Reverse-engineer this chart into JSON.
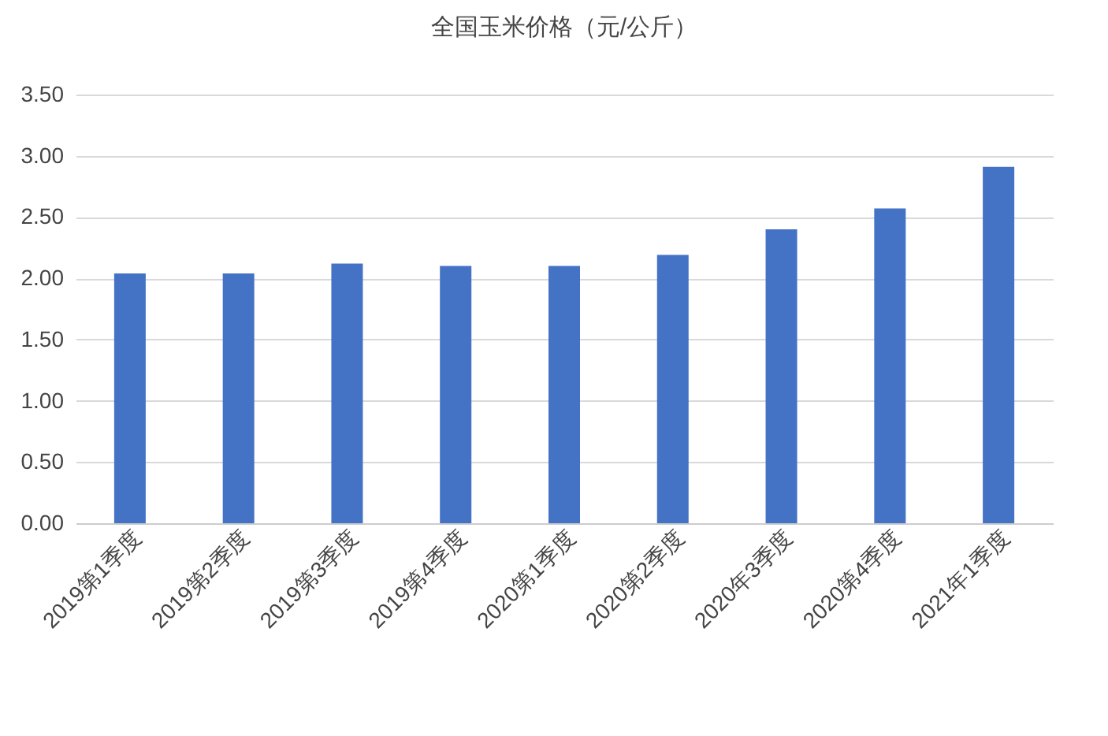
{
  "chart_data": {
    "type": "bar",
    "title": "全国玉米价格（元/公斤）",
    "categories": [
      "2019第1季度",
      "2019第2季度",
      "2019第3季度",
      "2019第4季度",
      "2020第1季度",
      "2020第2季度",
      "2020年3季度",
      "2020第4季度",
      "2021年1季度"
    ],
    "values": [
      2.04,
      2.04,
      2.12,
      2.1,
      2.1,
      2.19,
      2.4,
      2.57,
      2.91
    ],
    "color": "#4472c4",
    "ylim": [
      0,
      3.5
    ],
    "yticks": [
      {
        "value": 0,
        "label": "0.00"
      },
      {
        "value": 0.5,
        "label": "0.50"
      },
      {
        "value": 1,
        "label": "1.00"
      },
      {
        "value": 1.5,
        "label": "1.50"
      },
      {
        "value": 2,
        "label": "2.00"
      },
      {
        "value": 2.5,
        "label": "2.50"
      },
      {
        "value": 3,
        "label": "3.00"
      },
      {
        "value": 3.5,
        "label": "3.50"
      }
    ],
    "grid": "y"
  }
}
